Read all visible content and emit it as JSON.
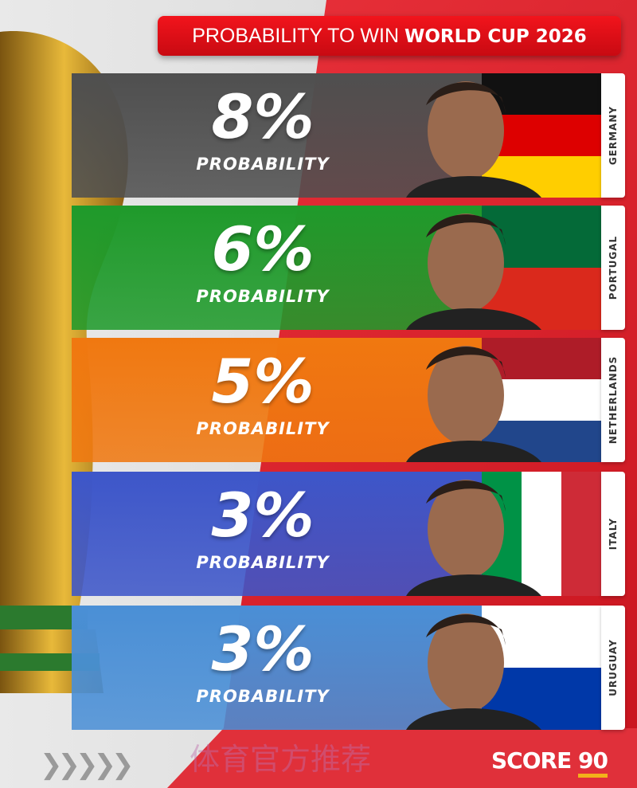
{
  "header": {
    "title_light": "PROBABILITY TO WIN",
    "title_bold": "WORLD CUP 2026"
  },
  "rows": [
    {
      "percent": "8%",
      "label": "PROBABILITY",
      "country": "GERMANY",
      "color": "#4f4f4f",
      "flag": [
        "#111111",
        "#dd0000",
        "#ffce00"
      ]
    },
    {
      "percent": "6%",
      "label": "PROBABILITY",
      "country": "PORTUGAL",
      "color": "#1f9a2b",
      "flag": [
        "#046a38",
        "#da291c"
      ]
    },
    {
      "percent": "5%",
      "label": "PROBABILITY",
      "country": "NETHERLANDS",
      "color": "#f07810",
      "flag": [
        "#ae1c28",
        "#ffffff",
        "#21468b"
      ]
    },
    {
      "percent": "3%",
      "label": "PROBABILITY",
      "country": "ITALY",
      "color": "#3d56c9",
      "flag": [
        "#009246",
        "#ffffff",
        "#ce2b37"
      ]
    },
    {
      "percent": "3%",
      "label": "PROBABILITY",
      "country": "URUGUAY",
      "color": "#4a8fd6",
      "flag": [
        "#ffffff",
        "#0038a8"
      ]
    }
  ],
  "footer": {
    "chevrons": "❯❯❯❯❯",
    "watermark": "体育官方推荐",
    "brand": "SCORE",
    "brand_number": "90"
  }
}
